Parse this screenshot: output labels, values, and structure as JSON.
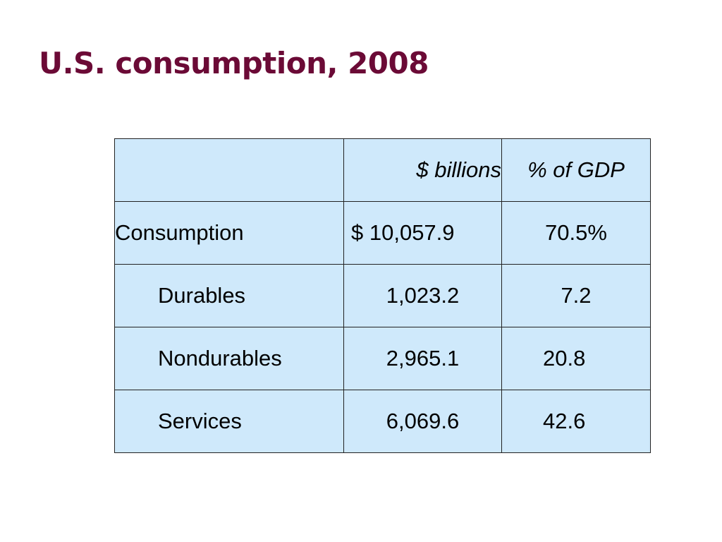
{
  "slide": {
    "title": "U.S. consumption, 2008"
  },
  "table": {
    "headers": [
      "",
      "$ billions",
      "% of GDP"
    ],
    "rows": [
      {
        "label": "Consumption",
        "billions": "$ 10,057.9",
        "gdp_pct": "70.5%"
      },
      {
        "label": "Durables",
        "billions": "1,023.2",
        "gdp_pct": "7.2"
      },
      {
        "label": "Nondurables",
        "billions": "2,965.1",
        "gdp_pct": "20.8"
      },
      {
        "label": "Services",
        "billions": "6,069.6",
        "gdp_pct": "42.6"
      }
    ]
  },
  "colors": {
    "title": "#6b0a36",
    "cell_background": "#cfe9fb",
    "border": "#222222"
  }
}
